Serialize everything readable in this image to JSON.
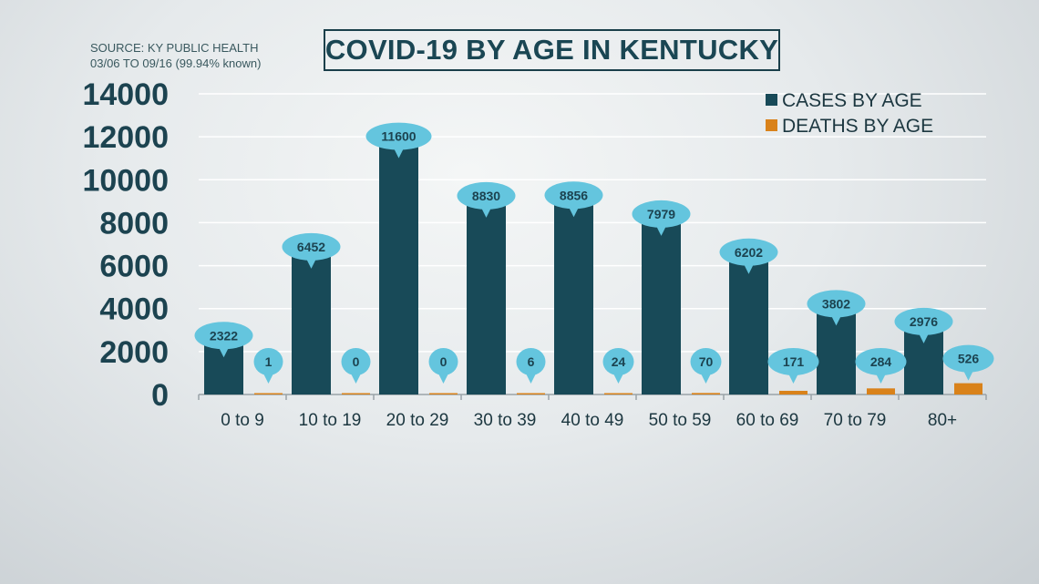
{
  "source": {
    "line1": "SOURCE: KY PUBLIC HEALTH",
    "line2": "03/06 TO 09/16 (99.94% known)"
  },
  "colors": {
    "cases": "#184a58",
    "deaths": "#d9821a",
    "bubble": "#64c5de",
    "grid": "#ffffff",
    "axis_text": "#1c4350"
  },
  "chart_data": {
    "type": "bar",
    "title": "COVID-19 BY AGE IN KENTUCKY",
    "categories": [
      "0 to 9",
      "10 to 19",
      "20 to 29",
      "30 to 39",
      "40 to 49",
      "50 to 59",
      "60 to 69",
      "70 to 79",
      "80+"
    ],
    "series": [
      {
        "name": "CASES BY AGE",
        "values": [
          2322,
          6452,
          11600,
          8830,
          8856,
          7979,
          6202,
          3802,
          2976
        ]
      },
      {
        "name": "DEATHS BY AGE",
        "values": [
          1,
          0,
          0,
          6,
          24,
          70,
          171,
          284,
          526
        ]
      }
    ],
    "yticks": [
      "0",
      "2000",
      "4000",
      "6000",
      "8000",
      "10000",
      "12000",
      "14000"
    ],
    "ylim": [
      0,
      14000
    ],
    "grid": true,
    "legend_position": "top-right",
    "data_labels": true
  }
}
